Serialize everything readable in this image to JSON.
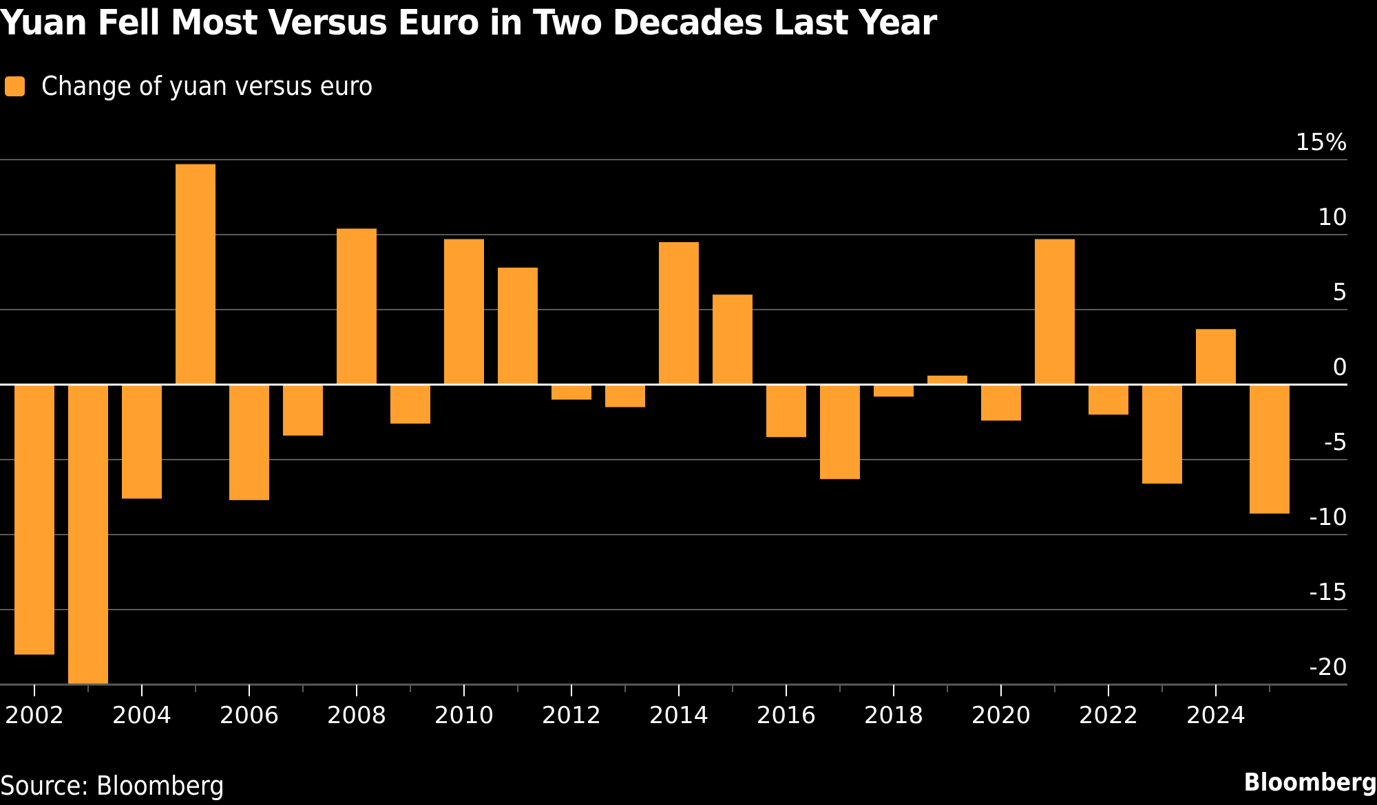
{
  "header": {
    "title": "Yuan Fell Most Versus Euro in Two Decades Last Year"
  },
  "legend": {
    "label": "Change of yuan versus euro",
    "color": "#FFA02F"
  },
  "footer": {
    "source": "Source: Bloomberg",
    "brand": "Bloomberg"
  },
  "colors": {
    "background": "#000000",
    "bar": "#FFA02F",
    "grid": "#5a5a5a",
    "zero_line": "#ffffff",
    "text": "#ffffff"
  },
  "chart_data": {
    "type": "bar",
    "title": "Yuan Fell Most Versus Euro in Two Decades Last Year",
    "xlabel": "",
    "ylabel": "",
    "unit": "%",
    "categories": [
      "2002",
      "2003",
      "2004",
      "2005",
      "2006",
      "2007",
      "2008",
      "2009",
      "2010",
      "2011",
      "2012",
      "2013",
      "2014",
      "2015",
      "2016",
      "2017",
      "2018",
      "2019",
      "2020",
      "2021",
      "2022",
      "2023",
      "2024",
      "2025"
    ],
    "series": [
      {
        "name": "Change of yuan versus euro",
        "values": [
          -18.0,
          -20.0,
          -7.6,
          14.7,
          -7.7,
          -3.4,
          10.4,
          -2.6,
          9.7,
          7.8,
          -1.0,
          -1.5,
          9.5,
          6.0,
          -3.5,
          -6.3,
          -0.8,
          0.6,
          -2.4,
          9.7,
          -2.0,
          -6.6,
          3.7,
          -8.6
        ]
      }
    ],
    "ylim": [
      -20,
      15
    ],
    "y_ticks": [
      15,
      10,
      5,
      0,
      -5,
      -10,
      -15,
      -20
    ],
    "y_tick_labels": [
      "15%",
      "10",
      "5",
      "0",
      "-5",
      "-10",
      "-15",
      "-20"
    ],
    "x_tick_labels": [
      "2002",
      "2004",
      "2006",
      "2008",
      "2010",
      "2012",
      "2014",
      "2016",
      "2018",
      "2020",
      "2022",
      "2024"
    ],
    "grid": true,
    "y_axis_side": "right",
    "legend_position": "top-left"
  }
}
